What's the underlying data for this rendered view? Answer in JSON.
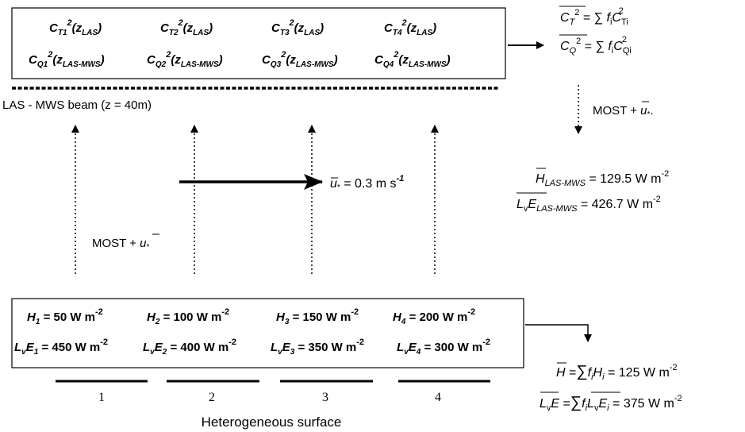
{
  "top_box": {
    "ct": [
      {
        "base": "C",
        "sub": "T1",
        "arg": "z",
        "arg_sub": "LAS"
      },
      {
        "base": "C",
        "sub": "T2",
        "arg": "z",
        "arg_sub": "LAS"
      },
      {
        "base": "C",
        "sub": "T3",
        "arg": "z",
        "arg_sub": "LAS"
      },
      {
        "base": "C",
        "sub": "T4",
        "arg": "z",
        "arg_sub": "LAS"
      }
    ],
    "cq": [
      {
        "base": "C",
        "sub": "Q1",
        "arg": "z",
        "arg_sub": "LAS-MWS"
      },
      {
        "base": "C",
        "sub": "Q2",
        "arg": "z",
        "arg_sub": "LAS-MWS"
      },
      {
        "base": "C",
        "sub": "Q3",
        "arg": "z",
        "arg_sub": "LAS-MWS"
      },
      {
        "base": "C",
        "sub": "Q4",
        "arg": "z",
        "arg_sub": "LAS-MWS"
      }
    ],
    "sup": "2"
  },
  "beam_label": "LAS - MWS beam (z = 40m)",
  "eq_ct": {
    "lhs": "C",
    "lhs_sub": "T",
    "sup": "2",
    "rel": " = ∑ ",
    "f": "f",
    "f_sub": "i",
    "c": "C",
    "c_sub": "Ti"
  },
  "eq_cq": {
    "lhs": "C",
    "lhs_sub": "Q",
    "sup": "2",
    "rel": " = ∑ ",
    "f": "f",
    "f_sub": "i",
    "c": "C",
    "c_sub": "Qi"
  },
  "most_right": {
    "text": "MOST + ",
    "u": "u",
    "u_sub": "*",
    "suffix": "."
  },
  "most_left": {
    "text": "MOST + ",
    "u": "u",
    "u_sub": "*"
  },
  "h_las": {
    "base": "H",
    "sub": "LAS-MWS",
    "rhs": " = 129.5 W m",
    "exp": "-2"
  },
  "le_las": {
    "l": "L",
    "l_sub": "v",
    "e": "E",
    "sub": "LAS-MWS",
    "rhs": " = 426.7 W m",
    "exp": "-2"
  },
  "wind": {
    "u": "u",
    "u_sub": "*",
    "rhs": " = 0.3 m s",
    "exp": "-1"
  },
  "bottom_box": {
    "h": [
      {
        "base": "H",
        "sub": "1",
        "rhs": " = 50 W m",
        "exp": "-2"
      },
      {
        "base": "H",
        "sub": "2",
        "rhs": " = 100 W m",
        "exp": "-2"
      },
      {
        "base": "H",
        "sub": "3",
        "rhs": " = 150 W m",
        "exp": "-2"
      },
      {
        "base": "H",
        "sub": "4",
        "rhs": " = 200 W m",
        "exp": "-2"
      }
    ],
    "le": [
      {
        "l": "L",
        "l_sub": "v",
        "e": "E",
        "sub": "1",
        "rhs": " = 450 W m",
        "exp": "-2"
      },
      {
        "l": "L",
        "l_sub": "v",
        "e": "E",
        "sub": "2",
        "rhs": " = 400 W m",
        "exp": "-2"
      },
      {
        "l": "L",
        "l_sub": "v",
        "e": "E",
        "sub": "3",
        "rhs": " = 350 W m",
        "exp": "-2"
      },
      {
        "l": "L",
        "l_sub": "v",
        "e": "E",
        "sub": "4",
        "rhs": " = 300 W m",
        "exp": "-2"
      }
    ]
  },
  "h_avg": {
    "lhs": "H",
    "mid1": " =",
    "sum": "∑",
    "f": "f",
    "f_sub": "i",
    "h": "H",
    "h_sub": "i",
    "rhs": " = 125 W m",
    "exp": "-2"
  },
  "le_avg": {
    "l": "L",
    "l_sub": "v",
    "e": "E",
    "mid1": " =",
    "sum": "∑",
    "f": "f",
    "f_sub": "i",
    "l2": "L",
    "l2_sub": "v",
    "e2": "E",
    "e2_sub": "i",
    "rhs": " = 375 W m",
    "exp": "-2"
  },
  "patches": [
    "1",
    "2",
    "3",
    "4"
  ],
  "surface_label": "Heterogeneous surface"
}
